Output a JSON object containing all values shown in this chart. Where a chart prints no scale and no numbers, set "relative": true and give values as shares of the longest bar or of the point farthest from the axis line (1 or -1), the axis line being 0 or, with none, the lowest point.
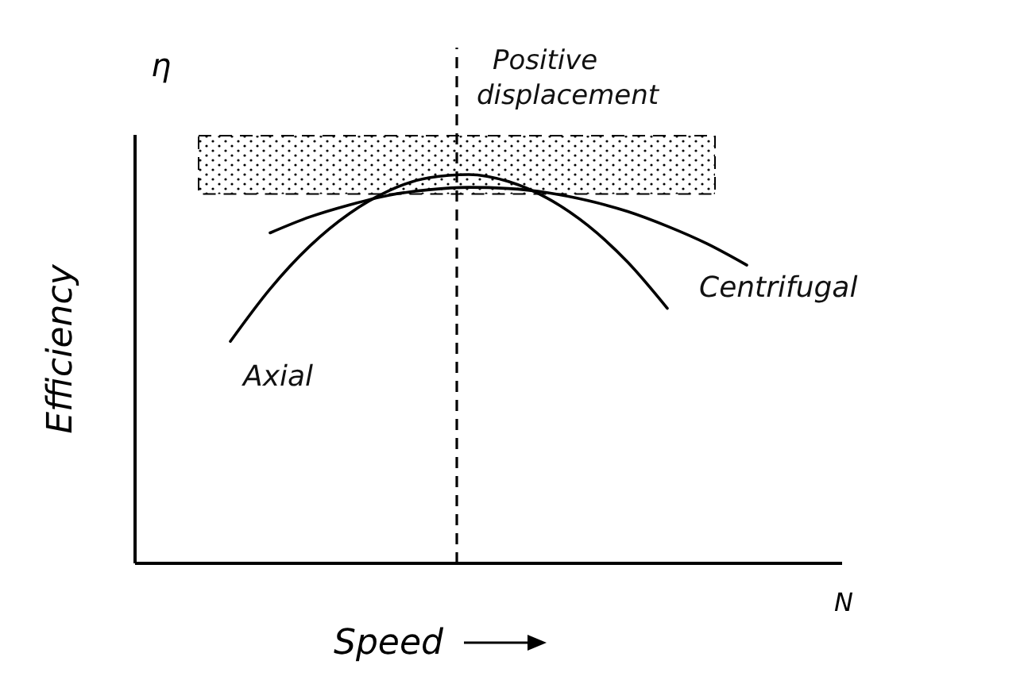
{
  "chart_data": {
    "type": "line",
    "relative": true,
    "xlabel": "Speed",
    "ylabel": "Efficiency",
    "categories": [
      null,
      null,
      null,
      null,
      null,
      null,
      null,
      null,
      null,
      null,
      null,
      null,
      null,
      null
    ],
    "series": [
      {
        "name": "Axial",
        "color": "#000000",
        "values": [
          0.571,
          0.706,
          0.816,
          0.9,
          0.959,
          0.992,
          1.0,
          0.982,
          0.938,
          0.869,
          0.775,
          0.656,
          null,
          null
        ]
      },
      {
        "name": "Centrifugal",
        "color": "#000000",
        "values": [
          null,
          0.85,
          0.891,
          0.922,
          0.947,
          0.961,
          0.967,
          0.964,
          0.953,
          0.933,
          0.905,
          0.867,
          0.822,
          0.767
        ]
      }
    ],
    "bands": [
      {
        "axis": "y",
        "from": 0.95,
        "to": 1.1,
        "label": "Positive displacement",
        "color": "#000000"
      }
    ],
    "annotations": [
      "η",
      "N"
    ],
    "marker": "none",
    "line_style": "solid"
  }
}
